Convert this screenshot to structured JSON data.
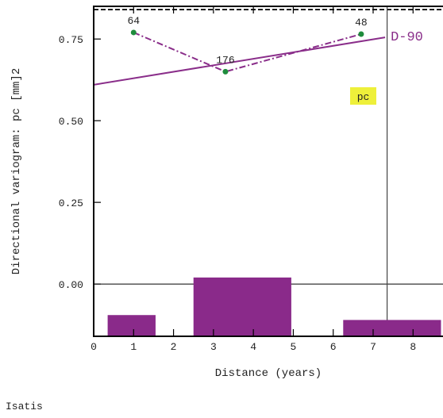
{
  "chart_data": {
    "type": "line",
    "xlabel": "Distance (years)",
    "ylabel": "Directional variogram: pc [mm]2",
    "xlim": [
      0,
      8.75
    ],
    "ylim": [
      -0.16,
      0.85
    ],
    "x_ticks": [
      "0",
      "1",
      "2",
      "3",
      "4",
      "5",
      "6",
      "7",
      "8"
    ],
    "y_ticks": [
      "0.00",
      "0.25",
      "0.50",
      "0.75"
    ],
    "experimental_variogram": {
      "x": [
        1.0,
        3.3,
        6.7
      ],
      "y": [
        0.77,
        0.65,
        0.765
      ],
      "pair_counts": [
        "64",
        "176",
        "48"
      ],
      "color": "#8a2e8a",
      "point_color": "#1e8c3c",
      "line_style": "dash-dot"
    },
    "model_line": {
      "x": [
        0,
        7.3
      ],
      "y": [
        0.61,
        0.755
      ],
      "color": "#8a2e8a"
    },
    "sill": {
      "y": 0.84,
      "line_style": "dashed"
    },
    "vertical_marker_x": 7.35,
    "line_label": "D-90",
    "variable_badge": {
      "text": "pc",
      "background": "#eef03a"
    },
    "histogram": {
      "bars": [
        {
          "x0": 0.35,
          "x1": 1.55,
          "height": 0.065
        },
        {
          "x0": 2.5,
          "x1": 4.95,
          "height": 0.18
        },
        {
          "x0": 6.25,
          "x1": 8.7,
          "height": 0.05
        }
      ],
      "color": "#8a2a8a"
    }
  },
  "footer": {
    "brand": "Isatis"
  }
}
